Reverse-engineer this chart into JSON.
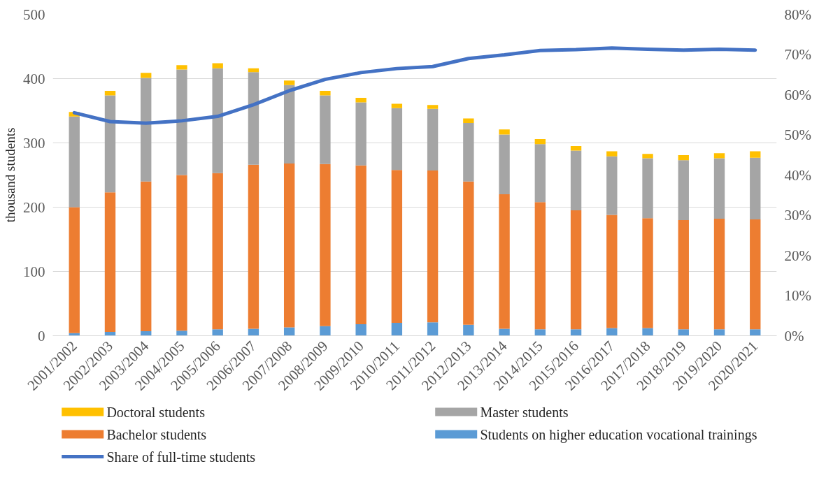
{
  "chart_data": {
    "type": "bar",
    "stacked": true,
    "categories": [
      "2001/2002",
      "2002/2003",
      "2003/2004",
      "2004/2005",
      "2005/2006",
      "2006/2007",
      "2007/2008",
      "2008/2009",
      "2009/2010",
      "2010/2011",
      "2011/2012",
      "2012/2013",
      "2013/2014",
      "2014/2015",
      "2015/2016",
      "2016/2017",
      "2017/2018",
      "2018/2019",
      "2019/2020",
      "2020/2021"
    ],
    "ylabel": "thousand students",
    "ylim": [
      0,
      500
    ],
    "yticks": [
      0,
      100,
      200,
      300,
      400,
      500
    ],
    "y2lim": [
      0,
      80
    ],
    "y2ticks": [
      {
        "value": 0,
        "label": "0%"
      },
      {
        "value": 10,
        "label": "10%"
      },
      {
        "value": 20,
        "label": "20%"
      },
      {
        "value": 30,
        "label": "30%"
      },
      {
        "value": 40,
        "label": "40%"
      },
      {
        "value": 50,
        "label": "50%"
      },
      {
        "value": 60,
        "label": "60%"
      },
      {
        "value": 70,
        "label": "70%"
      },
      {
        "value": 80,
        "label": "80%"
      }
    ],
    "grid": "y",
    "legend": "bottom",
    "series": [
      {
        "name": "Students on higher education vocational trainings",
        "color": "#5b9bd5",
        "values": [
          4,
          6,
          7,
          8,
          10,
          11,
          13,
          15,
          18,
          20,
          21,
          17,
          11,
          10,
          10,
          12,
          12,
          10,
          10,
          10
        ]
      },
      {
        "name": "Bachelor students",
        "color": "#ed7d31",
        "values": [
          196,
          217,
          233,
          242,
          243,
          255,
          255,
          252,
          247,
          238,
          236,
          223,
          209,
          198,
          185,
          176,
          171,
          170,
          172,
          171
        ]
      },
      {
        "name": "Master students",
        "color": "#a5a5a5",
        "values": [
          141,
          151,
          161,
          164,
          163,
          144,
          122,
          107,
          98,
          96,
          96,
          91,
          93,
          90,
          93,
          91,
          93,
          93,
          94,
          96
        ]
      },
      {
        "name": "Doctoral students",
        "color": "#ffc000",
        "values": [
          7,
          7,
          8,
          7,
          8,
          6,
          7,
          7,
          7,
          7,
          6,
          7,
          8,
          8,
          7,
          8,
          7,
          8,
          8,
          10
        ]
      },
      {
        "name": "Share of full-time students",
        "type": "line",
        "axis": "y2",
        "color": "#4472c4",
        "values": [
          55.5,
          53.3,
          52.9,
          53.5,
          54.6,
          57.5,
          61,
          63.8,
          65.5,
          66.5,
          67,
          69,
          69.9,
          71,
          71.2,
          71.6,
          71.3,
          71.1,
          71.3,
          71.1
        ]
      }
    ]
  }
}
